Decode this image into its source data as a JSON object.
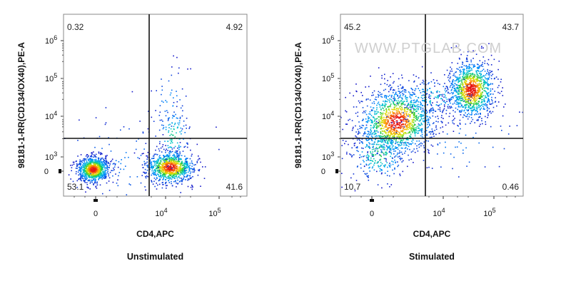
{
  "watermark": "WWW.PTGLAB.COM",
  "chart_data": [
    {
      "type": "scatter",
      "subtype": "flow-cytometry-density-plot",
      "caption": "Unstimulated",
      "xlabel": "CD4,APC",
      "ylabel": "98181-1-RR(CD134/OX40),PE-A",
      "x_scale": "biexponential",
      "y_scale": "biexponential",
      "x_ticks": [
        "0",
        "10^4",
        "10^5"
      ],
      "y_ticks": [
        "0",
        "10^3",
        "10^4",
        "10^5",
        "10^6"
      ],
      "quadrants": {
        "upper_left": 0.32,
        "upper_right": 4.92,
        "lower_left": 53.1,
        "lower_right": 41.6
      },
      "quadrant_labels": {
        "upper_left": "0.32",
        "upper_right": "4.92",
        "lower_left": "53.1",
        "lower_right": "41.6"
      },
      "grid": false,
      "legend": "none"
    },
    {
      "type": "scatter",
      "subtype": "flow-cytometry-density-plot",
      "caption": "Stimulated",
      "xlabel": "CD4,APC",
      "ylabel": "98181-1-RR(CD134/OX40),PE-A",
      "x_scale": "biexponential",
      "y_scale": "biexponential",
      "x_ticks": [
        "0",
        "10^4",
        "10^5"
      ],
      "y_ticks": [
        "0",
        "10^3",
        "10^4",
        "10^5",
        "10^6"
      ],
      "quadrants": {
        "upper_left": 45.2,
        "upper_right": 43.7,
        "lower_left": 10.7,
        "lower_right": 0.46
      },
      "quadrant_labels": {
        "upper_left": "45.2",
        "upper_right": "43.7",
        "lower_left": "10.7",
        "lower_right": "0.46"
      },
      "grid": false,
      "legend": "none"
    }
  ]
}
